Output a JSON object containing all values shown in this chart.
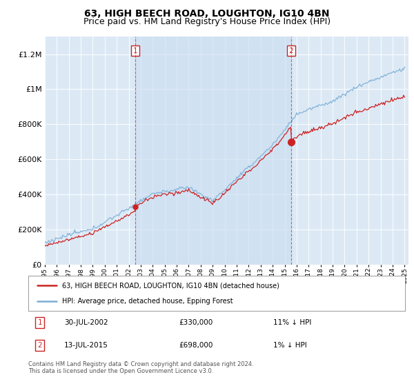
{
  "title": "63, HIGH BEECH ROAD, LOUGHTON, IG10 4BN",
  "subtitle": "Price paid vs. HM Land Registry's House Price Index (HPI)",
  "ylabel_ticks": [
    "£0",
    "£200K",
    "£400K",
    "£600K",
    "£800K",
    "£1M",
    "£1.2M"
  ],
  "ylim": [
    0,
    1300000
  ],
  "yticks": [
    0,
    200000,
    400000,
    600000,
    800000,
    1000000,
    1200000
  ],
  "plot_bg": "#dce9f5",
  "shade_color": "#c5d9f0",
  "hpi_color": "#7aadd4",
  "price_color": "#cc2222",
  "marker1_year": 2002.57,
  "marker1_price": 330000,
  "marker2_year": 2015.53,
  "marker2_price": 698000,
  "legend_label1": "63, HIGH BEECH ROAD, LOUGHTON, IG10 4BN (detached house)",
  "legend_label2": "HPI: Average price, detached house, Epping Forest",
  "table_row1": [
    "1",
    "30-JUL-2002",
    "£330,000",
    "11% ↓ HPI"
  ],
  "table_row2": [
    "2",
    "13-JUL-2015",
    "£698,000",
    "1% ↓ HPI"
  ],
  "footer": "Contains HM Land Registry data © Crown copyright and database right 2024.\nThis data is licensed under the Open Government Licence v3.0.",
  "title_fontsize": 10,
  "subtitle_fontsize": 9,
  "tick_fontsize": 8
}
